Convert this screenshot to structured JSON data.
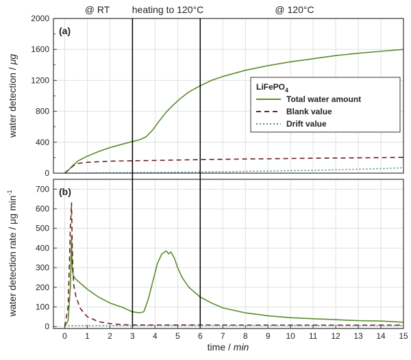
{
  "chart_data": {
    "type": "line",
    "phase_labels": [
      "@ RT",
      "heating to 120°C",
      "@ 120°C"
    ],
    "phase_boundaries": [
      3,
      6
    ],
    "xlabel_parts": [
      "time / ",
      "min"
    ],
    "x_ticks": [
      "0",
      "1",
      "2",
      "3",
      "4",
      "5",
      "6",
      "7",
      "8",
      "9",
      "10",
      "11",
      "12",
      "13",
      "14",
      "15"
    ],
    "xlim": [
      -0.5,
      15
    ],
    "grid": true,
    "colors": {
      "total": "#5a8a2c",
      "blank": "#6b1f1f",
      "drift": "#4a8a8a"
    },
    "panels": [
      {
        "label": "(a)",
        "ylabel_parts": [
          "water detection / ",
          "μg"
        ],
        "ylim": [
          0,
          2000
        ],
        "y_ticks": [
          "0",
          "400",
          "800",
          "1200",
          "1600",
          "2000"
        ],
        "minor_y_ticks": [
          "200",
          "600",
          "1000",
          "1400",
          "1800"
        ],
        "legend": {
          "title": "LiFePO",
          "title_sub": "4",
          "position": "inside right",
          "entries": [
            "Total water amount",
            "Blank value",
            "Drift value"
          ]
        },
        "series": [
          {
            "name": "Total water amount",
            "x": [
              0,
              0.2,
              0.4,
              0.6,
              0.8,
              1.0,
              1.5,
              2.0,
              2.5,
              3.0,
              3.3,
              3.6,
              3.9,
              4.2,
              4.5,
              4.8,
              5.1,
              5.5,
              6.0,
              6.5,
              7.0,
              8.0,
              9.0,
              10.0,
              11.0,
              12.0,
              13.0,
              14.0,
              15.0
            ],
            "y": [
              0,
              50,
              110,
              160,
              190,
              220,
              280,
              330,
              370,
              410,
              430,
              470,
              560,
              680,
              790,
              880,
              960,
              1050,
              1130,
              1200,
              1250,
              1330,
              1390,
              1440,
              1480,
              1520,
              1550,
              1575,
              1600
            ]
          },
          {
            "name": "Blank value",
            "x": [
              0,
              0.2,
              0.4,
              0.6,
              0.8,
              1.0,
              2.0,
              3.0,
              4.0,
              5.0,
              6.0,
              7.0,
              8.0,
              9.0,
              10.0,
              11.0,
              12.0,
              13.0,
              14.0,
              15.0
            ],
            "y": [
              0,
              50,
              100,
              125,
              135,
              140,
              155,
              160,
              165,
              170,
              175,
              180,
              183,
              186,
              190,
              193,
              196,
              198,
              200,
              205
            ]
          },
          {
            "name": "Drift value",
            "x": [
              0,
              1,
              2,
              3,
              4,
              5,
              6,
              7,
              8,
              9,
              10,
              11,
              12,
              13,
              14,
              15
            ],
            "y": [
              0,
              2,
              4,
              6,
              9,
              12,
              15,
              19,
              23,
              27,
              32,
              37,
              43,
              50,
              58,
              70
            ]
          }
        ]
      },
      {
        "label": "(b)",
        "ylabel_parts": [
          "water detection rate / ",
          "μg min",
          "-1"
        ],
        "ylim": [
          -10,
          750
        ],
        "y_ticks": [
          "0",
          "100",
          "200",
          "300",
          "400",
          "500",
          "600",
          "700"
        ],
        "series": [
          {
            "name": "Total water amount",
            "x": [
              0,
              0.15,
              0.25,
              0.3,
              0.33,
              0.36,
              0.4,
              0.5,
              0.7,
              1.0,
              1.5,
              2.0,
              2.5,
              3.0,
              3.3,
              3.5,
              3.7,
              3.9,
              4.1,
              4.3,
              4.5,
              4.6,
              4.7,
              4.85,
              5.0,
              5.2,
              5.5,
              6.0,
              6.5,
              7.0,
              8.0,
              9.0,
              10.0,
              11.0,
              12.0,
              13.0,
              14.0,
              15.0
            ],
            "y": [
              0,
              30,
              200,
              460,
              300,
              270,
              255,
              240,
              220,
              190,
              150,
              120,
              100,
              75,
              70,
              75,
              140,
              230,
              320,
              370,
              385,
              370,
              380,
              350,
              300,
              250,
              200,
              150,
              120,
              95,
              70,
              55,
              45,
              40,
              35,
              30,
              28,
              22
            ]
          },
          {
            "name": "Blank value",
            "x": [
              0,
              0.15,
              0.25,
              0.3,
              0.33,
              0.36,
              0.4,
              0.5,
              0.7,
              1.0,
              1.5,
              2.0,
              2.5,
              3.0,
              4.0,
              5.0,
              6.0,
              8.0,
              10.0,
              12.0,
              14.0,
              15.0
            ],
            "y": [
              0,
              100,
              500,
              630,
              420,
              300,
              210,
              150,
              90,
              50,
              25,
              15,
              10,
              8,
              8,
              8,
              8,
              7,
              7,
              7,
              7,
              7
            ]
          },
          {
            "name": "Drift value",
            "x": [
              0,
              1,
              3,
              5,
              7,
              9,
              11,
              13,
              15
            ],
            "y": [
              5,
              5,
              5,
              5,
              5,
              5,
              5,
              5,
              5
            ]
          }
        ]
      }
    ]
  }
}
